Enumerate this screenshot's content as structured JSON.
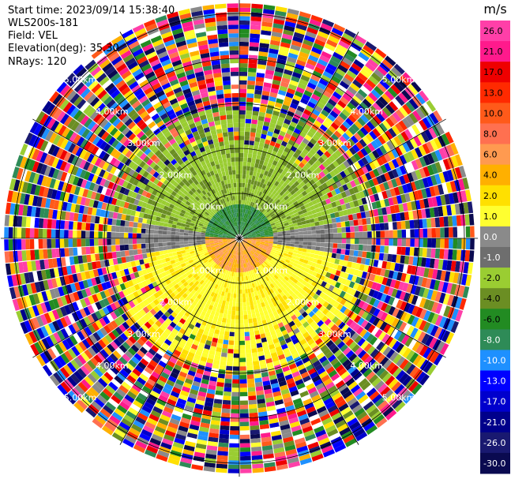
{
  "header": {
    "start_time": "Start time: 2023/09/14 15:38:40",
    "instrument": "WLS200s-181",
    "field": "Field: VEL",
    "elevation": "Elevation(deg): 35.30",
    "nrays": "NRays: 120"
  },
  "colorbar": {
    "unit": "m/s",
    "ticks": [
      "26.0",
      "21.0",
      "17.0",
      "13.0",
      "10.0",
      "8.0",
      "6.0",
      "4.0",
      "2.0",
      "1.0",
      "0.0",
      "-1.0",
      "-2.0",
      "-4.0",
      "-6.0",
      "-8.0",
      "-10.0",
      "-13.0",
      "-17.0",
      "-21.0",
      "-26.0",
      "-30.0"
    ],
    "colors": [
      "#ff3fa8",
      "#ff1a8c",
      "#ee0000",
      "#ff2a00",
      "#ff5a1a",
      "#ff7050",
      "#ff9a50",
      "#ffb000",
      "#ffe000",
      "#ffff30",
      "#8a8a8a",
      "#6e6e6e",
      "#9acd32",
      "#6b8e23",
      "#228b22",
      "#2e8b57",
      "#1e90ff",
      "#0000ff",
      "#0000cd",
      "#00008b",
      "#191970",
      "#0a0a50"
    ]
  },
  "chart_data": {
    "type": "ppi",
    "nrays": 120,
    "range_rings_km": [
      1.0,
      2.0,
      3.0,
      4.0,
      5.0
    ],
    "ring_labels": [
      "1.00km",
      "2.00km",
      "3.00km",
      "4.00km",
      "5.00km"
    ],
    "spokes_deg": [
      0,
      30,
      60,
      90,
      120,
      150,
      180,
      210,
      240,
      270,
      300,
      330
    ],
    "vmin": -30.0,
    "vmax": 26.0
  }
}
